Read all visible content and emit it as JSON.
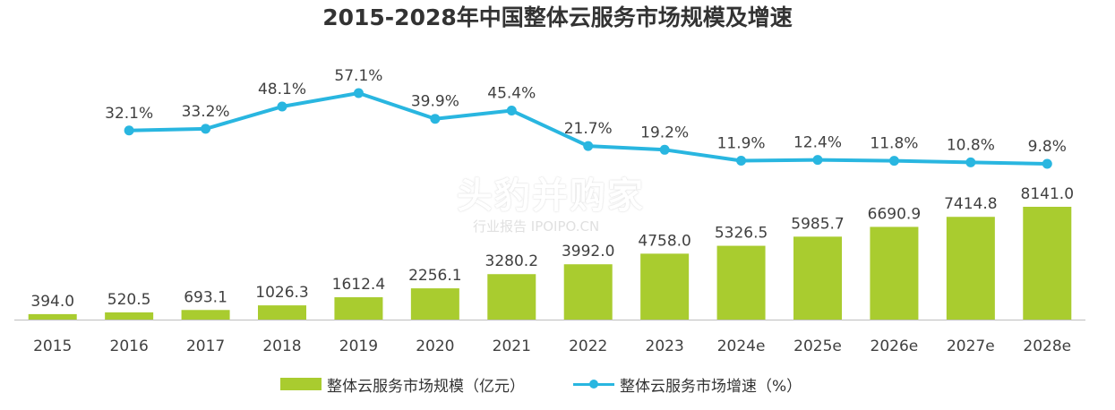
{
  "title": "2015-2028年中国整体云服务市场规模及增速",
  "watermark": {
    "main": "头豹并购家",
    "sub": "行业报告 IPOIPO.CN"
  },
  "colors": {
    "bar": "#a9cc2f",
    "line": "#29b6e0",
    "axis": "#bfbfbf",
    "label": "#404040"
  },
  "chart_data": {
    "type": "bar",
    "categories": [
      "2015",
      "2016",
      "2017",
      "2018",
      "2019",
      "2020",
      "2021",
      "2022",
      "2023",
      "2024e",
      "2025e",
      "2026e",
      "2027e",
      "2028e"
    ],
    "series": [
      {
        "name": "整体云服务市场规模（亿元）",
        "type": "bar",
        "values": [
          394.0,
          520.5,
          693.1,
          1026.3,
          1612.4,
          2256.1,
          3280.2,
          3992.0,
          4758.0,
          5326.5,
          5985.7,
          6690.9,
          7414.8,
          8141.0
        ],
        "labels": [
          "394.0",
          "520.5",
          "693.1",
          "1026.3",
          "1612.4",
          "2256.1",
          "3280.2",
          "3992.0",
          "4758.0",
          "5326.5",
          "5985.7",
          "6690.9",
          "7414.8",
          "8141.0"
        ]
      },
      {
        "name": "整体云服务市场增速（%）",
        "type": "line",
        "values": [
          null,
          32.1,
          33.2,
          48.1,
          57.1,
          39.9,
          45.4,
          21.7,
          19.2,
          11.9,
          12.4,
          11.8,
          10.8,
          9.8
        ],
        "labels": [
          "",
          "32.1%",
          "33.2%",
          "48.1%",
          "57.1%",
          "39.9%",
          "45.4%",
          "21.7%",
          "19.2%",
          "11.9%",
          "12.4%",
          "11.8%",
          "10.8%",
          "9.8%"
        ]
      }
    ],
    "grid": false,
    "legend_position": "bottom"
  }
}
